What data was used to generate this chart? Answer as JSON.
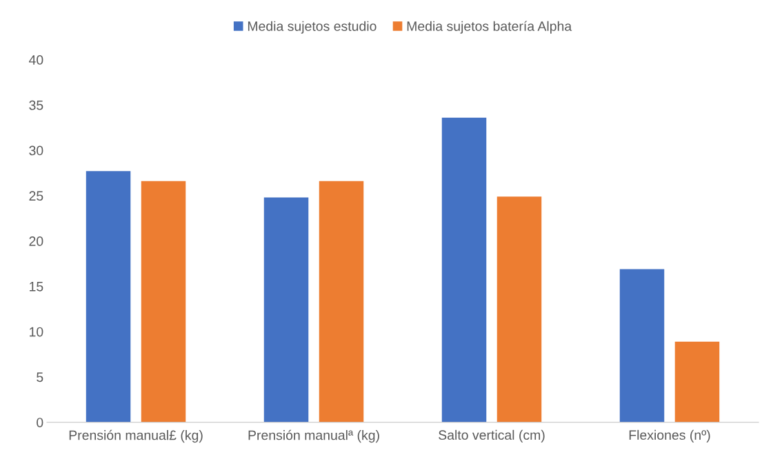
{
  "chart_data": {
    "type": "bar",
    "categories": [
      "Prensión manual£ (kg)",
      "Prensión manualª (kg)",
      "Salto vertical (cm)",
      "Flexiones (nº)"
    ],
    "series": [
      {
        "name": "Media sujetos estudio",
        "color": "#4472c4",
        "values": [
          27.7,
          24.8,
          33.6,
          16.9
        ]
      },
      {
        "name": "Media sujetos batería Alpha",
        "color": "#ed7d31",
        "values": [
          26.6,
          26.6,
          24.9,
          8.9
        ]
      }
    ],
    "ylim": [
      0,
      40
    ],
    "yticks": [
      0,
      5,
      10,
      15,
      20,
      25,
      30,
      35,
      40
    ],
    "grid": false,
    "legend": "top"
  }
}
